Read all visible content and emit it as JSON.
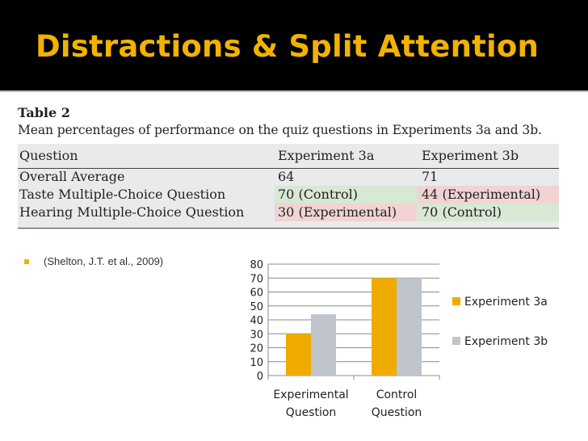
{
  "slide": {
    "title": "Distractions & Split Attention",
    "citation": "(Shelton, J.T. et al., 2009)"
  },
  "table": {
    "label": "Table 2",
    "caption": "Mean percentages of performance on the quiz questions in Experiments 3a and 3b.",
    "headers": [
      "Question",
      "Experiment 3a",
      "Experiment 3b"
    ],
    "rows": [
      [
        "Overall Average",
        "64",
        "71"
      ],
      [
        "Taste Multiple-Choice Question",
        "70 (Control)",
        "44 (Experimental)"
      ],
      [
        "Hearing Multiple-Choice Question",
        "30 (Experimental)",
        "70 (Control)"
      ]
    ],
    "cell_colors": {
      "control": "#d7e8d3",
      "experimental": "#f1d3d3"
    }
  },
  "chart_data": {
    "type": "bar",
    "categories": [
      [
        "Experimental",
        "Question"
      ],
      [
        "Control",
        "Question"
      ]
    ],
    "series": [
      {
        "name": "Experiment 3a",
        "values": [
          30,
          70
        ],
        "color": "#f0ab00"
      },
      {
        "name": "Experiment 3b",
        "values": [
          44,
          70
        ],
        "color": "#c0c4cc"
      }
    ],
    "ylim": [
      0,
      80
    ],
    "yticks": [
      0,
      10,
      20,
      30,
      40,
      50,
      60,
      70,
      80
    ],
    "grid": true,
    "legend": "right"
  },
  "colors": {
    "title": "#f2b203",
    "title_bar": "#000000"
  }
}
